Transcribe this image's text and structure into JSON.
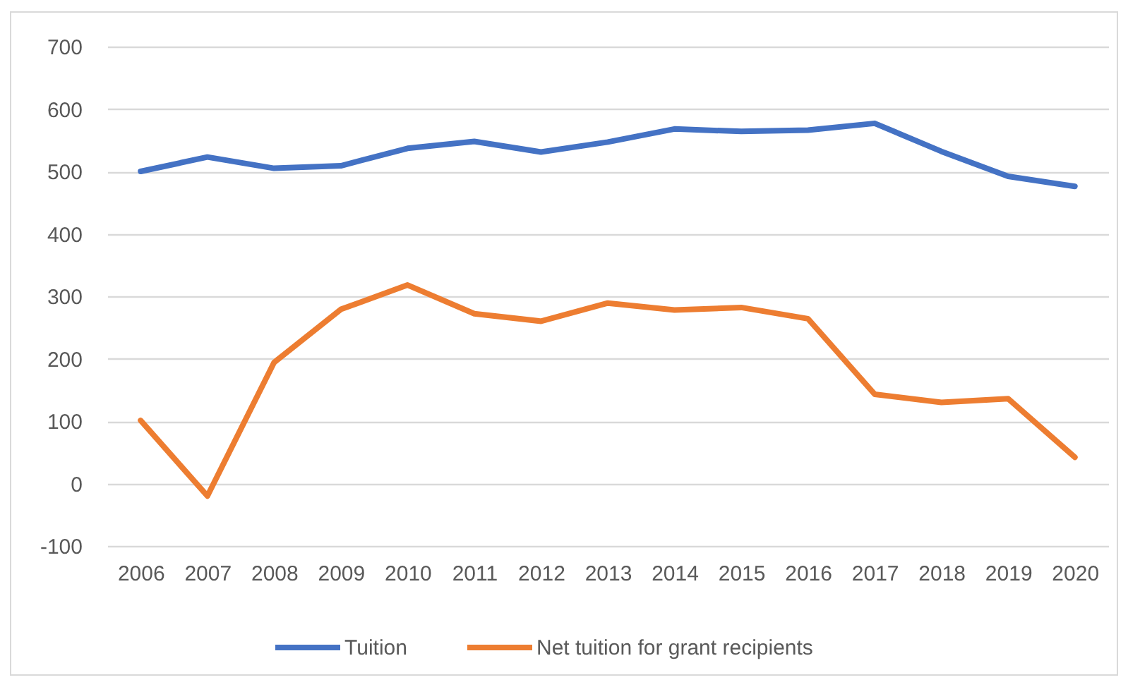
{
  "chart_data": {
    "type": "line",
    "categories": [
      "2006",
      "2007",
      "2008",
      "2009",
      "2010",
      "2011",
      "2012",
      "2013",
      "2014",
      "2015",
      "2016",
      "2017",
      "2018",
      "2019",
      "2020"
    ],
    "series": [
      {
        "name": "Tuition",
        "color": "#4472c4",
        "values": [
          500,
          523,
          505,
          509,
          537,
          548,
          531,
          547,
          568,
          564,
          566,
          577,
          532,
          492,
          476
        ]
      },
      {
        "name": "Net tuition for grant recipients",
        "color": "#ed7d31",
        "values": [
          101,
          -20,
          194,
          279,
          318,
          272,
          260,
          289,
          278,
          282,
          264,
          143,
          130,
          136,
          42
        ]
      }
    ],
    "ylim": [
      -100,
      700
    ],
    "yticks": [
      -100,
      0,
      100,
      200,
      300,
      400,
      500,
      600,
      700
    ],
    "grid": "y",
    "legend": "bottom"
  }
}
